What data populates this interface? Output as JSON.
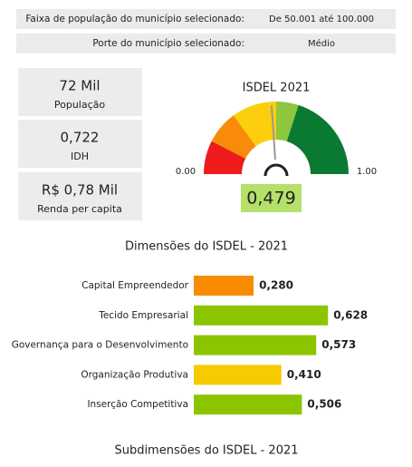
{
  "filters": [
    {
      "label": "Faixa de população do município selecionado:",
      "value": "De 50.001 até 100.000"
    },
    {
      "label": "Porte do município selecionado:",
      "value": "Médio"
    }
  ],
  "cards": [
    {
      "value": "72 Mil",
      "label": "População"
    },
    {
      "value": "0,722",
      "label": "IDH"
    },
    {
      "value": "R$ 0,78 Mil",
      "label": "Renda per capita"
    }
  ],
  "chart_data": [
    {
      "type": "gauge",
      "title": "ISDEL 2021",
      "value": 0.479,
      "value_labels": [
        "0,479"
      ],
      "ylim": [
        0,
        1
      ],
      "yticks": [
        {
          "value": 0,
          "label": "0.00"
        },
        {
          "value": 1,
          "label": "1.00"
        }
      ],
      "bands": [
        {
          "from": 0,
          "to": 0.15,
          "color": "#ee1c1c"
        },
        {
          "from": 0.15,
          "to": 0.3,
          "color": "#f98b0a"
        },
        {
          "from": 0.3,
          "to": 0.5,
          "color": "#fbcf0c"
        },
        {
          "from": 0.5,
          "to": 0.6,
          "color": "#8dc63f"
        },
        {
          "from": 0.6,
          "to": 1,
          "color": "#0a7a32"
        }
      ]
    },
    {
      "type": "bar",
      "title": "Dimensões do ISDEL - 2021",
      "categories": [
        "Capital Empreendedor",
        "Tecido Empresarial",
        "Governança para o Desenvolvimento",
        "Organização Produtiva",
        "Inserção Competitiva"
      ],
      "values": [
        0.28,
        0.628,
        0.573,
        0.41,
        0.506
      ],
      "value_labels": [
        "0,280",
        "0,628",
        "0,573",
        "0,410",
        "0,506"
      ],
      "colors": [
        "#f98b00",
        "#8dc400",
        "#8dc400",
        "#f8cb00",
        "#8dc400"
      ],
      "xlim": [
        0,
        1
      ]
    }
  ],
  "next_section_title": "Subdimensões do ISDEL - 2021"
}
